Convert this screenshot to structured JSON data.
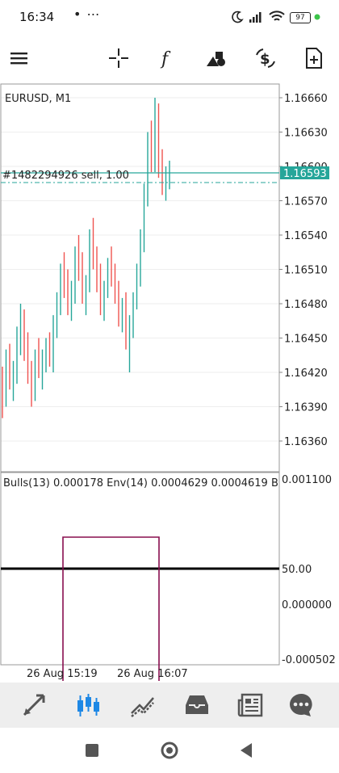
{
  "status": {
    "time": "16:34",
    "dots": "• ⋯",
    "battery": "97"
  },
  "toolbar": {
    "menu_icon": "hamburger-menu-icon",
    "crosshair_icon": "crosshair-icon",
    "indicators_icon": "function-icon",
    "objects_icon": "shapes-icon",
    "trade_icon": "dollar-exchange-icon",
    "new_order_icon": "add-document-icon"
  },
  "chart": {
    "symbol": "EURUSD, M1",
    "order_line_label": "#1482294926 sell, 1.00",
    "current_price": "1.16593",
    "price_ticks": [
      "1.16660",
      "1.16630",
      "1.16600",
      "1.16570",
      "1.16540",
      "1.16510",
      "1.16480",
      "1.16450",
      "1.16420",
      "1.16390",
      "1.16360"
    ],
    "indicator_label": "Bulls(13) 0.000178 Env(14) 0.0004629 0.0004619 B",
    "indicator_ticks": [
      "0.001100",
      "50.00",
      "0.000000",
      "-0.000502"
    ],
    "time_ticks": [
      "26 Aug 15:19",
      "26 Aug 16:07"
    ],
    "colors": {
      "bull": "#26a69a",
      "bear": "#ef5350",
      "price_line": "#26a69a",
      "envelope": "#880e4f"
    }
  },
  "chart_data": {
    "type": "candlestick",
    "title": "EURUSD, M1",
    "ylim": [
      1.1633,
      1.1668
    ],
    "candles": [
      [
        1.1641,
        1.16425,
        1.1638,
        1.164
      ],
      [
        1.164,
        1.1644,
        1.1639,
        1.1643
      ],
      [
        1.1643,
        1.16445,
        1.16405,
        1.16415
      ],
      [
        1.16415,
        1.1643,
        1.16395,
        1.1642
      ],
      [
        1.1642,
        1.1646,
        1.1641,
        1.1645
      ],
      [
        1.1645,
        1.1648,
        1.16435,
        1.16465
      ],
      [
        1.16465,
        1.16475,
        1.1643,
        1.1644
      ],
      [
        1.1644,
        1.16455,
        1.1641,
        1.1642
      ],
      [
        1.1642,
        1.1643,
        1.1639,
        1.164
      ],
      [
        1.164,
        1.1644,
        1.16395,
        1.16435
      ],
      [
        1.16435,
        1.1645,
        1.16415,
        1.16425
      ],
      [
        1.16425,
        1.1644,
        1.16405,
        1.16435
      ],
      [
        1.16435,
        1.1645,
        1.1642,
        1.16445
      ],
      [
        1.16445,
        1.16455,
        1.16425,
        1.1643
      ],
      [
        1.1643,
        1.1647,
        1.1642,
        1.1646
      ],
      [
        1.1646,
        1.1649,
        1.1645,
        1.1648
      ],
      [
        1.1648,
        1.16515,
        1.1647,
        1.16505
      ],
      [
        1.16505,
        1.16525,
        1.16485,
        1.16495
      ],
      [
        1.16495,
        1.1651,
        1.1647,
        1.1648
      ],
      [
        1.1648,
        1.165,
        1.16465,
        1.1649
      ],
      [
        1.1649,
        1.1653,
        1.1648,
        1.1652
      ],
      [
        1.1652,
        1.1654,
        1.165,
        1.1651
      ],
      [
        1.1651,
        1.16525,
        1.1648,
        1.1649
      ],
      [
        1.1649,
        1.16505,
        1.1647,
        1.165
      ],
      [
        1.165,
        1.16545,
        1.1649,
        1.16535
      ],
      [
        1.16535,
        1.16555,
        1.1651,
        1.1652
      ],
      [
        1.1652,
        1.1653,
        1.1649,
        1.165
      ],
      [
        1.165,
        1.16515,
        1.1647,
        1.1648
      ],
      [
        1.1648,
        1.165,
        1.16465,
        1.16495
      ],
      [
        1.16495,
        1.1652,
        1.16485,
        1.1651
      ],
      [
        1.1651,
        1.1653,
        1.16495,
        1.165
      ],
      [
        1.165,
        1.16515,
        1.1648,
        1.1649
      ],
      [
        1.1649,
        1.165,
        1.1646,
        1.1647
      ],
      [
        1.1647,
        1.16485,
        1.16455,
        1.16475
      ],
      [
        1.16475,
        1.1649,
        1.1644,
        1.1645
      ],
      [
        1.1645,
        1.1647,
        1.1642,
        1.1646
      ],
      [
        1.1646,
        1.1649,
        1.1645,
        1.16485
      ],
      [
        1.16485,
        1.16515,
        1.16475,
        1.16505
      ],
      [
        1.16505,
        1.16545,
        1.16495,
        1.16535
      ],
      [
        1.16535,
        1.16585,
        1.16525,
        1.16575
      ],
      [
        1.16575,
        1.1663,
        1.16565,
        1.1662
      ],
      [
        1.1662,
        1.1664,
        1.16595,
        1.16605
      ],
      [
        1.16605,
        1.1666,
        1.16595,
        1.16645
      ],
      [
        1.16645,
        1.16655,
        1.1659,
        1.166
      ],
      [
        1.166,
        1.16615,
        1.16575,
        1.16585
      ],
      [
        1.16585,
        1.166,
        1.1657,
        1.1659
      ],
      [
        1.1659,
        1.16605,
        1.1658,
        1.16595
      ]
    ]
  },
  "bottom_nav": {
    "items": [
      "quotes-icon",
      "chart-icon",
      "trade-icon",
      "history-icon",
      "news-icon",
      "messages-icon"
    ],
    "active_index": 1
  },
  "system_nav": {
    "items": [
      "recents-square-icon",
      "home-circle-icon",
      "back-triangle-icon"
    ]
  }
}
